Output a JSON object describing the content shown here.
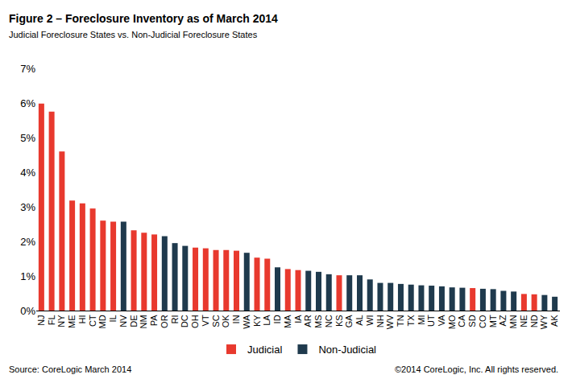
{
  "chart_data": {
    "type": "bar",
    "title": "Figure 2 – Foreclosure Inventory as of March 2014",
    "subtitle": "Judicial Foreclosure States vs. Non-Judicial Foreclosure States",
    "annotations": [
      "Source: CoreLogic March 2014",
      "©2014 CoreLogic, Inc. All rights reserved."
    ],
    "categories": [
      "NJ",
      "FL",
      "NY",
      "ME",
      "HI",
      "CT",
      "MD",
      "IL",
      "NV",
      "DE",
      "NM",
      "PA",
      "OR",
      "RI",
      "DC",
      "OH",
      "VT",
      "SC",
      "OK",
      "IN",
      "WA",
      "KY",
      "LA",
      "ID",
      "MA",
      "IA",
      "AR",
      "MS",
      "NC",
      "KS",
      "GA",
      "AL",
      "WI",
      "NH",
      "WV",
      "TN",
      "TX",
      "MI",
      "UT",
      "VA",
      "MO",
      "CA",
      "SD",
      "CO",
      "MT",
      "AZ",
      "MN",
      "NE",
      "ND",
      "WY",
      "AK"
    ],
    "series": [
      {
        "name": "Judicial",
        "color": "#e8392e",
        "values": [
          5.98,
          5.75,
          4.6,
          3.18,
          3.1,
          2.95,
          2.6,
          2.57,
          null,
          2.32,
          2.25,
          2.2,
          null,
          null,
          null,
          1.82,
          1.8,
          1.75,
          1.75,
          1.73,
          null,
          1.53,
          1.5,
          null,
          1.2,
          1.17,
          null,
          null,
          null,
          1.02,
          null,
          null,
          null,
          null,
          null,
          null,
          null,
          null,
          null,
          null,
          null,
          null,
          0.65,
          null,
          null,
          null,
          null,
          0.48,
          0.47,
          null,
          null
        ]
      },
      {
        "name": "Non-Judicial",
        "color": "#1f3a4d",
        "values": [
          null,
          null,
          null,
          null,
          null,
          null,
          null,
          null,
          2.57,
          null,
          null,
          null,
          2.15,
          1.95,
          1.87,
          null,
          null,
          null,
          null,
          null,
          1.67,
          null,
          null,
          1.25,
          null,
          null,
          1.15,
          1.12,
          1.05,
          null,
          1.02,
          1.02,
          0.9,
          0.8,
          0.8,
          0.77,
          0.75,
          0.73,
          0.72,
          0.7,
          0.67,
          0.66,
          null,
          0.63,
          0.62,
          0.57,
          0.55,
          null,
          null,
          0.45,
          0.4
        ]
      }
    ],
    "ylim": [
      0,
      7
    ],
    "yticks": [
      {
        "value": 0,
        "label": "0%"
      },
      {
        "value": 1,
        "label": "1%"
      },
      {
        "value": 2,
        "label": "2%"
      },
      {
        "value": 3,
        "label": "3%"
      },
      {
        "value": 4,
        "label": "4%"
      },
      {
        "value": 5,
        "label": "5%"
      },
      {
        "value": 6,
        "label": "6%"
      },
      {
        "value": 7,
        "label": "7%"
      }
    ],
    "grid": false,
    "legend": "bottom"
  }
}
